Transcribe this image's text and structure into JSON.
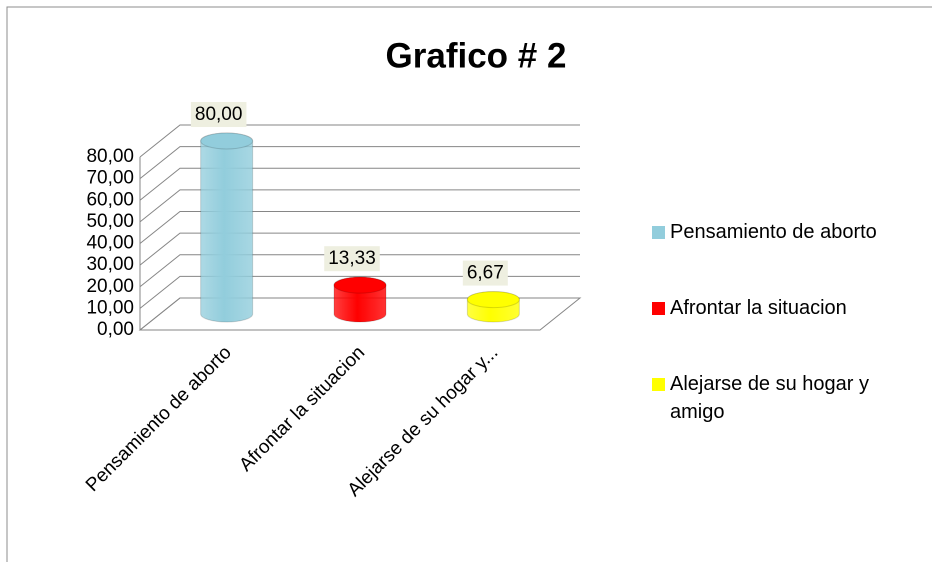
{
  "chart_data": {
    "type": "cylinder",
    "title": "Grafico # 2",
    "categories": [
      "Pensamiento de aborto",
      "Afrontar la situacion",
      "Alejarse de su hogar y..."
    ],
    "values": [
      80,
      13.33,
      6.67
    ],
    "value_labels": [
      "80,00",
      "13,33",
      "6,67"
    ],
    "colors": [
      "#92cddc",
      "#ff0000",
      "#ffff00"
    ],
    "legend": [
      "Pensamiento de aborto",
      "Afrontar la situacion",
      "Alejarse de su hogar y amigo"
    ],
    "ylim": [
      0,
      80
    ],
    "yticks": [
      {
        "value": 0,
        "label": "0,00"
      },
      {
        "value": 10,
        "label": "10,00"
      },
      {
        "value": 20,
        "label": "20,00"
      },
      {
        "value": 30,
        "label": "30,00"
      },
      {
        "value": 40,
        "label": "40,00"
      },
      {
        "value": 50,
        "label": "50,00"
      },
      {
        "value": 60,
        "label": "60,00"
      },
      {
        "value": 70,
        "label": "70,00"
      },
      {
        "value": 80,
        "label": "80,00"
      }
    ],
    "grid": true,
    "legend_position": "right"
  }
}
